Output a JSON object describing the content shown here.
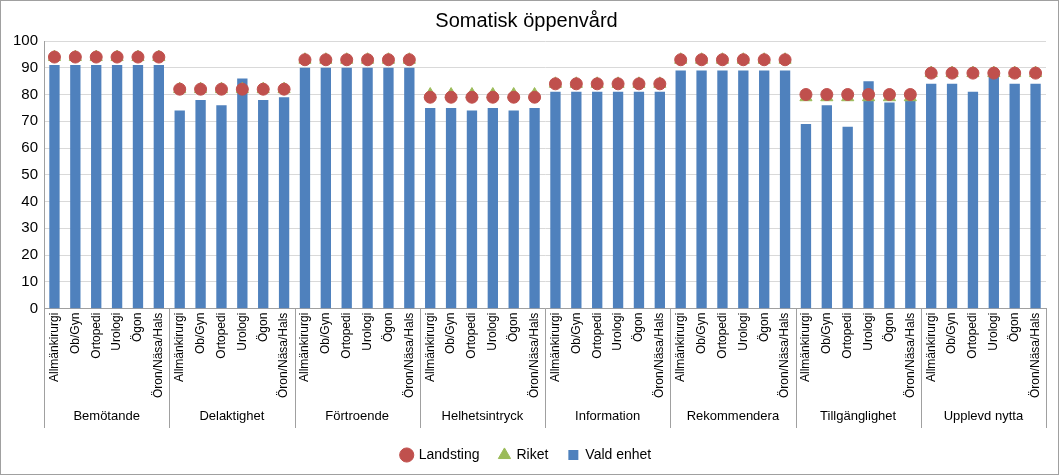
{
  "chart_data": {
    "type": "bar",
    "title": "Somatisk öppenvård",
    "categories": [
      {
        "label": "Allmänkirurgi",
        "group": "Bemötande"
      },
      {
        "label": "Ob/Gyn",
        "group": "Bemötande"
      },
      {
        "label": "Ortopedi",
        "group": "Bemötande"
      },
      {
        "label": "Urologi",
        "group": "Bemötande"
      },
      {
        "label": "Ögon",
        "group": "Bemötande"
      },
      {
        "label": "Öron/Näsa/Hals",
        "group": "Bemötande"
      },
      {
        "label": "Allmänkirurgi",
        "group": "Delaktighet"
      },
      {
        "label": "Ob/Gyn",
        "group": "Delaktighet"
      },
      {
        "label": "Ortopedi",
        "group": "Delaktighet"
      },
      {
        "label": "Urologi",
        "group": "Delaktighet"
      },
      {
        "label": "Ögon",
        "group": "Delaktighet"
      },
      {
        "label": "Öron/Näsa/Hals",
        "group": "Delaktighet"
      },
      {
        "label": "Allmänkirurgi",
        "group": "Förtroende"
      },
      {
        "label": "Ob/Gyn",
        "group": "Förtroende"
      },
      {
        "label": "Ortopedi",
        "group": "Förtroende"
      },
      {
        "label": "Urologi",
        "group": "Förtroende"
      },
      {
        "label": "Ögon",
        "group": "Förtroende"
      },
      {
        "label": "Öron/Näsa/Hals",
        "group": "Förtroende"
      },
      {
        "label": "Allmänkirurgi",
        "group": "Helhetsintryck"
      },
      {
        "label": "Ob/Gyn",
        "group": "Helhetsintryck"
      },
      {
        "label": "Ortopedi",
        "group": "Helhetsintryck"
      },
      {
        "label": "Urologi",
        "group": "Helhetsintryck"
      },
      {
        "label": "Ögon",
        "group": "Helhetsintryck"
      },
      {
        "label": "Öron/Näsa/Hals",
        "group": "Helhetsintryck"
      },
      {
        "label": "Allmänkirurgi",
        "group": "Information"
      },
      {
        "label": "Ob/Gyn",
        "group": "Information"
      },
      {
        "label": "Ortopedi",
        "group": "Information"
      },
      {
        "label": "Urologi",
        "group": "Information"
      },
      {
        "label": "Ögon",
        "group": "Information"
      },
      {
        "label": "Öron/Näsa/Hals",
        "group": "Information"
      },
      {
        "label": "Allmänkirurgi",
        "group": "Rekommendera"
      },
      {
        "label": "Ob/Gyn",
        "group": "Rekommendera"
      },
      {
        "label": "Ortopedi",
        "group": "Rekommendera"
      },
      {
        "label": "Urologi",
        "group": "Rekommendera"
      },
      {
        "label": "Ögon",
        "group": "Rekommendera"
      },
      {
        "label": "Öron/Näsa/Hals",
        "group": "Rekommendera"
      },
      {
        "label": "Allmänkirurgi",
        "group": "Tillgänglighet"
      },
      {
        "label": "Ob/Gyn",
        "group": "Tillgänglighet"
      },
      {
        "label": "Ortopedi",
        "group": "Tillgänglighet"
      },
      {
        "label": "Urologi",
        "group": "Tillgänglighet"
      },
      {
        "label": "Ögon",
        "group": "Tillgänglighet"
      },
      {
        "label": "Öron/Näsa/Hals",
        "group": "Tillgänglighet"
      },
      {
        "label": "Allmänkirurgi",
        "group": "Upplevd nytta"
      },
      {
        "label": "Ob/Gyn",
        "group": "Upplevd nytta"
      },
      {
        "label": "Ortopedi",
        "group": "Upplevd nytta"
      },
      {
        "label": "Urologi",
        "group": "Upplevd nytta"
      },
      {
        "label": "Ögon",
        "group": "Upplevd nytta"
      },
      {
        "label": "Öron/Näsa/Hals",
        "group": "Upplevd nytta"
      }
    ],
    "series": [
      {
        "name": "Vald enhet",
        "type": "bar",
        "color": "#4f81bd",
        "values": [
          91,
          91,
          91,
          91,
          91,
          91,
          74,
          78,
          76,
          86,
          78,
          79,
          90,
          90,
          90,
          90,
          90,
          90,
          75,
          75,
          74,
          75,
          74,
          75,
          81,
          81,
          81,
          81,
          81,
          81,
          89,
          89,
          89,
          89,
          89,
          89,
          69,
          76,
          68,
          85,
          77,
          78,
          84,
          84,
          81,
          88,
          84,
          84
        ]
      },
      {
        "name": "Landsting",
        "type": "line",
        "line_style": "none",
        "marker": "circle",
        "color": "#c0504d",
        "values": [
          94,
          94,
          94,
          94,
          94,
          94,
          82,
          82,
          82,
          82,
          82,
          82,
          93,
          93,
          93,
          93,
          93,
          93,
          79,
          79,
          79,
          79,
          79,
          79,
          84,
          84,
          84,
          84,
          84,
          84,
          93,
          93,
          93,
          93,
          93,
          93,
          80,
          80,
          80,
          80,
          80,
          80,
          88,
          88,
          88,
          88,
          88,
          88
        ]
      },
      {
        "name": "Riket",
        "type": "line",
        "line_style": "none",
        "marker": "triangle",
        "color": "#9bbb59",
        "values": [
          94,
          94,
          94,
          94,
          94,
          94,
          82,
          82,
          82,
          82,
          82,
          82,
          93,
          93,
          93,
          93,
          93,
          93,
          80,
          80,
          80,
          80,
          80,
          80,
          84,
          84,
          84,
          84,
          84,
          84,
          93,
          93,
          93,
          93,
          93,
          93,
          79,
          79,
          79,
          79,
          79,
          79,
          88,
          88,
          88,
          88,
          88,
          88
        ]
      }
    ],
    "ylim": [
      0,
      100
    ],
    "yticks": [
      0,
      10,
      20,
      30,
      40,
      50,
      60,
      70,
      80,
      90,
      100
    ],
    "grid": true,
    "legend": "bottom"
  }
}
